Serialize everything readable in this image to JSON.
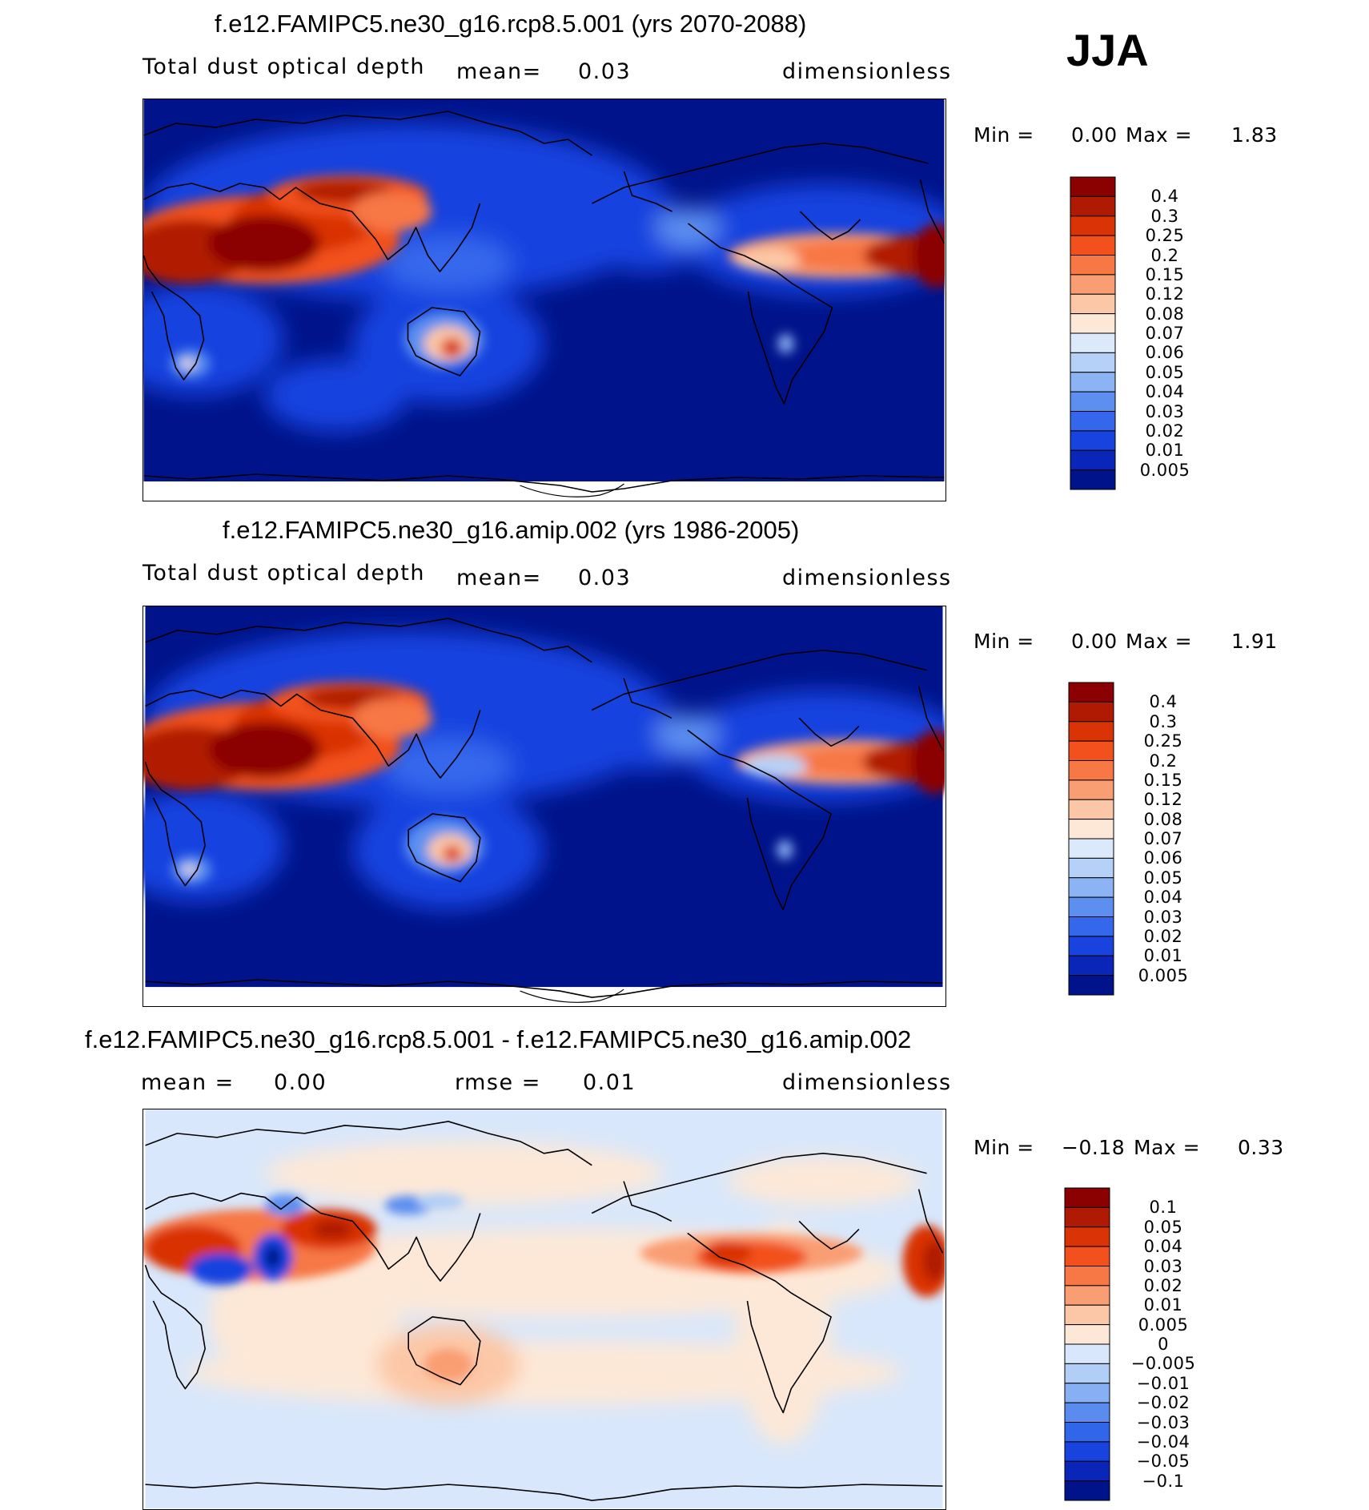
{
  "season": "JJA",
  "panels": [
    {
      "title": "f.e12.FAMIPC5.ne30_g16.rcp8.5.001 (yrs 2070-2088)",
      "variable": "Total dust optical depth",
      "stat1_label": "mean=",
      "stat1_value": "0.03",
      "units": "dimensionless",
      "min_label": "Min =",
      "min_value": "0.00",
      "max_label": "Max =",
      "max_value": "1.83"
    },
    {
      "title": "f.e12.FAMIPC5.ne30_g16.amip.002 (yrs 1986-2005)",
      "variable": "Total dust optical depth",
      "stat1_label": "mean=",
      "stat1_value": "0.03",
      "units": "dimensionless",
      "min_label": "Min =",
      "min_value": "0.00",
      "max_label": "Max =",
      "max_value": "1.91"
    },
    {
      "title": "f.e12.FAMIPC5.ne30_g16.rcp8.5.001 - f.e12.FAMIPC5.ne30_g16.amip.002",
      "stat1_label": "mean =",
      "stat1_value": "0.00",
      "stat2_label": "rmse =",
      "stat2_value": "0.01",
      "units": "dimensionless",
      "min_label": "Min =",
      "min_value": "−0.18",
      "max_label": "Max =",
      "max_value": "0.33"
    }
  ],
  "colorbar_abs": {
    "labels": [
      "0.4",
      "0.3",
      "0.25",
      "0.2",
      "0.15",
      "0.12",
      "0.08",
      "0.07",
      "0.06",
      "0.05",
      "0.04",
      "0.03",
      "0.02",
      "0.01",
      "0.005"
    ],
    "colors": [
      "#8b0000",
      "#b11a02",
      "#d93306",
      "#f2511d",
      "#f77745",
      "#f99d73",
      "#fcc7a6",
      "#fde8d7",
      "#dce9fb",
      "#b6d1f7",
      "#8cb4f4",
      "#5c8ff0",
      "#3467ec",
      "#1843df",
      "#0a26b8",
      "#00138a"
    ]
  },
  "colorbar_diff": {
    "labels": [
      "0.1",
      "0.05",
      "0.04",
      "0.03",
      "0.02",
      "0.01",
      "0.005",
      "0",
      "−0.005",
      "−0.01",
      "−0.02",
      "−0.03",
      "−0.04",
      "−0.05",
      "−0.1"
    ],
    "colors": [
      "#8b0000",
      "#b11a02",
      "#d93306",
      "#f2511d",
      "#f77745",
      "#f99d73",
      "#fcc7a6",
      "#fde8d7",
      "#d8e7fb",
      "#b1cef7",
      "#86b0f3",
      "#5a8cef",
      "#3165ea",
      "#1843df",
      "#0a26b8",
      "#00138a"
    ]
  }
}
